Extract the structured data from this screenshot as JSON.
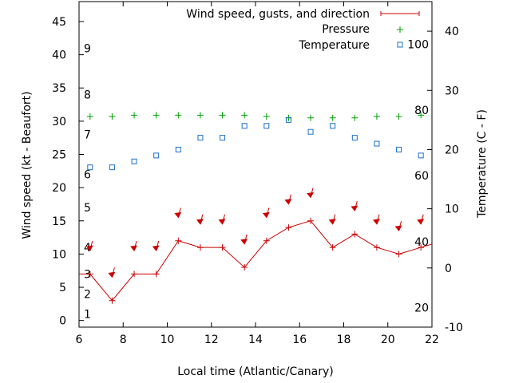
{
  "chart_data": {
    "type": "line",
    "x_label": "Local time (Atlantic/Canary)",
    "y_label": "Wind speed (kt - Beaufort)",
    "y2_label": "Temperature (C - F)",
    "x_range": [
      6,
      22
    ],
    "x_ticks": [
      6,
      8,
      10,
      12,
      14,
      16,
      18,
      20,
      22
    ],
    "y_range": [
      -1,
      48
    ],
    "y_ticks": [
      0,
      5,
      10,
      15,
      20,
      25,
      30,
      35,
      40,
      45
    ],
    "y2_range": [
      -10,
      45
    ],
    "y2_ticks": [
      -10,
      0,
      10,
      20,
      30,
      40
    ],
    "beaufort_labels": [
      {
        "label": "1",
        "kt": 1
      },
      {
        "label": "2",
        "kt": 4
      },
      {
        "label": "3",
        "kt": 7
      },
      {
        "label": "4",
        "kt": 11
      },
      {
        "label": "5",
        "kt": 17
      },
      {
        "label": "6",
        "kt": 22
      },
      {
        "label": "7",
        "kt": 28
      },
      {
        "label": "8",
        "kt": 34
      },
      {
        "label": "9",
        "kt": 41
      }
    ],
    "fahrenheit_labels": [
      {
        "label": "20",
        "c": -6.7
      },
      {
        "label": "40",
        "c": 4.4
      },
      {
        "label": "60",
        "c": 15.6
      },
      {
        "label": "80",
        "c": 26.7
      },
      {
        "label": "100",
        "c": 37.8
      }
    ],
    "legend": {
      "position": "top-right",
      "entries": [
        "Wind speed, gusts, and direction",
        "Pressure",
        "Temperature"
      ]
    },
    "series": [
      {
        "name": "Wind speed, gusts, and direction",
        "color": "#cc0000",
        "x": [
          6,
          6.5,
          7.5,
          8.5,
          9.5,
          10.5,
          11.5,
          12.5,
          13.5,
          14.5,
          15.5,
          16.5,
          17.5,
          18.5,
          19.5,
          20.5,
          21.5,
          22
        ],
        "y": [
          7,
          7,
          3,
          7,
          7,
          12,
          11,
          11,
          8,
          12,
          14,
          15,
          11,
          13,
          11,
          10,
          11,
          11.5
        ]
      },
      {
        "name": "Pressure",
        "color": "#00a000",
        "x": [
          6.5,
          7.5,
          8.5,
          9.5,
          10.5,
          11.5,
          12.5,
          13.5,
          14.5,
          15.5,
          16.5,
          17.5,
          18.5,
          19.5,
          20.5,
          21.5
        ],
        "y": [
          30.7,
          30.7,
          30.9,
          30.9,
          30.9,
          30.9,
          30.9,
          30.9,
          30.7,
          30.5,
          30.5,
          30.5,
          30.5,
          30.7,
          30.7,
          30.9
        ]
      },
      {
        "name": "Temperature",
        "color": "#1a6fcc",
        "x": [
          6.5,
          7.5,
          8.5,
          9.5,
          10.5,
          11.5,
          12.5,
          13.5,
          14.5,
          15.5,
          16.5,
          17.5,
          18.5,
          19.5,
          20.5,
          21.5
        ],
        "y": [
          17,
          17,
          18,
          19,
          20,
          22,
          22,
          24,
          24,
          25,
          23,
          24,
          22,
          21,
          20,
          19
        ]
      },
      {
        "name": "Gusts",
        "color": "#cc0000",
        "x": [
          6.5,
          7.5,
          8.5,
          9.5,
          10.5,
          11.5,
          12.5,
          13.5,
          14.5,
          15.5,
          16.5,
          17.5,
          18.5,
          19.5,
          20.5,
          21.5
        ],
        "y": [
          11,
          7,
          11,
          11,
          16,
          15,
          15,
          12,
          16,
          18,
          19,
          15,
          17,
          15,
          14,
          15
        ]
      }
    ]
  }
}
